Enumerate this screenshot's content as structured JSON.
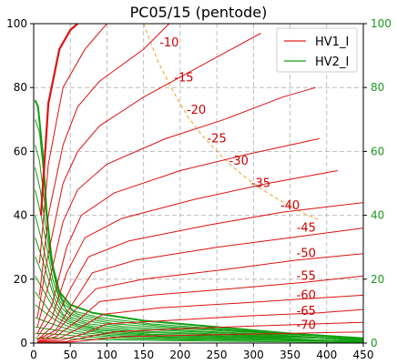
{
  "chart_data": {
    "type": "line",
    "title": "PC05/15 (pentode)",
    "xlabel": "",
    "ylabel": "",
    "xlim": [
      0,
      450
    ],
    "ylim": [
      0,
      100
    ],
    "y2lim": [
      0,
      100
    ],
    "x_ticks": [
      0,
      50,
      100,
      150,
      200,
      250,
      300,
      350,
      400,
      450
    ],
    "y_ticks": [
      0,
      20,
      40,
      60,
      80,
      100
    ],
    "grid": true,
    "legend": "top-right",
    "legend_entries": [
      {
        "name": "HV1_I",
        "color": "#e02020"
      },
      {
        "name": "HV2_I",
        "color": "#1a9a1a"
      }
    ],
    "colors": {
      "hv1": "#dd1111",
      "hv2": "#11a011",
      "dissipation": "#f0a020",
      "right_axis": "#1a9a1a"
    },
    "hv1_curves": [
      {
        "label": "-10",
        "values": [
          [
            10,
            40
          ],
          [
            20,
            75
          ],
          [
            35,
            92
          ],
          [
            50,
            98
          ],
          [
            60,
            100
          ]
        ]
      },
      {
        "label": "-15",
        "values": [
          [
            8,
            25
          ],
          [
            20,
            56
          ],
          [
            40,
            80
          ],
          [
            70,
            92
          ],
          [
            100,
            100
          ]
        ]
      },
      {
        "label": "-20",
        "values": [
          [
            8,
            15
          ],
          [
            20,
            40
          ],
          [
            40,
            62
          ],
          [
            60,
            74
          ],
          [
            90,
            82
          ],
          [
            150,
            92
          ],
          [
            185,
            100
          ]
        ]
      },
      {
        "label": "-25",
        "values": [
          [
            5,
            8
          ],
          [
            20,
            28
          ],
          [
            40,
            50
          ],
          [
            60,
            60
          ],
          [
            90,
            68
          ],
          [
            150,
            77
          ],
          [
            230,
            87
          ],
          [
            310,
            97
          ]
        ]
      },
      {
        "label": "-30",
        "values": [
          [
            5,
            5
          ],
          [
            20,
            18
          ],
          [
            40,
            38
          ],
          [
            60,
            48
          ],
          [
            100,
            56
          ],
          [
            180,
            64
          ],
          [
            260,
            70
          ],
          [
            340,
            77
          ],
          [
            385,
            80
          ]
        ]
      },
      {
        "label": "-35",
        "values": [
          [
            5,
            3
          ],
          [
            25,
            12
          ],
          [
            45,
            30
          ],
          [
            65,
            40
          ],
          [
            110,
            47
          ],
          [
            200,
            54
          ],
          [
            290,
            59
          ],
          [
            390,
            64
          ]
        ]
      },
      {
        "label": "-40",
        "values": [
          [
            5,
            2
          ],
          [
            25,
            8
          ],
          [
            45,
            22
          ],
          [
            70,
            33
          ],
          [
            120,
            39
          ],
          [
            220,
            45
          ],
          [
            320,
            50
          ],
          [
            415,
            54
          ]
        ]
      },
      {
        "label": "-45",
        "values": [
          [
            5,
            1
          ],
          [
            25,
            5
          ],
          [
            50,
            17
          ],
          [
            75,
            27
          ],
          [
            130,
            32
          ],
          [
            240,
            37
          ],
          [
            340,
            41
          ],
          [
            450,
            44
          ]
        ]
      },
      {
        "label": "-50",
        "values": [
          [
            5,
            1
          ],
          [
            30,
            4
          ],
          [
            55,
            13
          ],
          [
            80,
            22
          ],
          [
            140,
            26
          ],
          [
            250,
            30
          ],
          [
            350,
            33
          ],
          [
            450,
            36
          ]
        ]
      },
      {
        "label": "-55",
        "values": [
          [
            5,
            0.5
          ],
          [
            30,
            3
          ],
          [
            55,
            10
          ],
          [
            85,
            17
          ],
          [
            150,
            20
          ],
          [
            260,
            23
          ],
          [
            360,
            26
          ],
          [
            450,
            28
          ]
        ]
      },
      {
        "label": "-60",
        "values": [
          [
            5,
            0.3
          ],
          [
            30,
            2
          ],
          [
            60,
            7
          ],
          [
            90,
            13
          ],
          [
            160,
            15
          ],
          [
            270,
            17
          ],
          [
            370,
            19
          ],
          [
            450,
            21
          ]
        ]
      },
      {
        "label": "-65",
        "values": [
          [
            5,
            0.2
          ],
          [
            35,
            1.5
          ],
          [
            65,
            5
          ],
          [
            95,
            9
          ],
          [
            170,
            11
          ],
          [
            280,
            12.5
          ],
          [
            380,
            14
          ],
          [
            450,
            15
          ]
        ]
      },
      {
        "label": "-70",
        "values": [
          [
            5,
            0.1
          ],
          [
            40,
            1
          ],
          [
            70,
            3
          ],
          [
            100,
            6
          ],
          [
            180,
            7
          ],
          [
            290,
            8.5
          ],
          [
            390,
            9.5
          ],
          [
            450,
            10.5
          ]
        ]
      },
      {
        "label": "",
        "values": [
          [
            5,
            0.1
          ],
          [
            45,
            0.5
          ],
          [
            75,
            2
          ],
          [
            110,
            3.5
          ],
          [
            200,
            4.5
          ],
          [
            320,
            5.5
          ],
          [
            450,
            6.5
          ]
        ]
      },
      {
        "label": "",
        "values": [
          [
            5,
            0
          ],
          [
            50,
            0.3
          ],
          [
            80,
            1
          ],
          [
            120,
            2
          ],
          [
            220,
            2.5
          ],
          [
            340,
            3
          ],
          [
            450,
            3.5
          ]
        ]
      }
    ],
    "hv2_curves": [
      {
        "values": [
          [
            2,
            76
          ],
          [
            6,
            74
          ],
          [
            12,
            60
          ],
          [
            18,
            40
          ],
          [
            25,
            25
          ],
          [
            35,
            16
          ],
          [
            50,
            12
          ],
          [
            80,
            9.5
          ],
          [
            150,
            7
          ],
          [
            250,
            5
          ],
          [
            350,
            3
          ],
          [
            450,
            1.5
          ]
        ]
      },
      {
        "values": [
          [
            2,
            70
          ],
          [
            8,
            66
          ],
          [
            14,
            52
          ],
          [
            20,
            35
          ],
          [
            28,
            22
          ],
          [
            38,
            14
          ],
          [
            55,
            10
          ],
          [
            90,
            8
          ],
          [
            160,
            6
          ],
          [
            260,
            4.3
          ],
          [
            360,
            2.7
          ],
          [
            450,
            1.2
          ]
        ]
      },
      {
        "values": [
          [
            2,
            62
          ],
          [
            8,
            57
          ],
          [
            15,
            44
          ],
          [
            22,
            30
          ],
          [
            30,
            19
          ],
          [
            42,
            12
          ],
          [
            60,
            9
          ],
          [
            100,
            7
          ],
          [
            180,
            5.2
          ],
          [
            280,
            3.8
          ],
          [
            380,
            2.3
          ],
          [
            450,
            1
          ]
        ]
      },
      {
        "values": [
          [
            2,
            55
          ],
          [
            9,
            48
          ],
          [
            16,
            37
          ],
          [
            24,
            25
          ],
          [
            33,
            16
          ],
          [
            45,
            10
          ],
          [
            65,
            8
          ],
          [
            110,
            6
          ],
          [
            200,
            4.5
          ],
          [
            300,
            3.3
          ],
          [
            400,
            2
          ],
          [
            450,
            1
          ]
        ]
      },
      {
        "values": [
          [
            2,
            48
          ],
          [
            10,
            40
          ],
          [
            18,
            30
          ],
          [
            26,
            20
          ],
          [
            36,
            13
          ],
          [
            50,
            9
          ],
          [
            70,
            7
          ],
          [
            120,
            5.2
          ],
          [
            220,
            3.8
          ],
          [
            320,
            2.8
          ],
          [
            450,
            0.8
          ]
        ]
      },
      {
        "values": [
          [
            2,
            40
          ],
          [
            10,
            33
          ],
          [
            18,
            25
          ],
          [
            28,
            16
          ],
          [
            38,
            11
          ],
          [
            52,
            8
          ],
          [
            75,
            6
          ],
          [
            130,
            4.5
          ],
          [
            240,
            3.3
          ],
          [
            340,
            2.4
          ],
          [
            450,
            0.7
          ]
        ]
      },
      {
        "values": [
          [
            2,
            33
          ],
          [
            11,
            27
          ],
          [
            20,
            20
          ],
          [
            30,
            13
          ],
          [
            40,
            9
          ],
          [
            55,
            7
          ],
          [
            80,
            5.2
          ],
          [
            140,
            3.8
          ],
          [
            260,
            2.8
          ],
          [
            360,
            2
          ],
          [
            450,
            0.6
          ]
        ]
      },
      {
        "values": [
          [
            2,
            27
          ],
          [
            11,
            22
          ],
          [
            20,
            16
          ],
          [
            31,
            11
          ],
          [
            42,
            8
          ],
          [
            58,
            6
          ],
          [
            85,
            4.5
          ],
          [
            150,
            3.3
          ],
          [
            280,
            2.4
          ],
          [
            380,
            1.7
          ],
          [
            450,
            0.5
          ]
        ]
      },
      {
        "values": [
          [
            2,
            21
          ],
          [
            12,
            17
          ],
          [
            22,
            13
          ],
          [
            33,
            9
          ],
          [
            45,
            7
          ],
          [
            62,
            5.3
          ],
          [
            90,
            4
          ],
          [
            160,
            2.8
          ],
          [
            300,
            2
          ],
          [
            400,
            1.5
          ],
          [
            450,
            0.4
          ]
        ]
      },
      {
        "values": [
          [
            2,
            16
          ],
          [
            12,
            13
          ],
          [
            22,
            10
          ],
          [
            35,
            7.5
          ],
          [
            48,
            6
          ],
          [
            65,
            4.6
          ],
          [
            95,
            3.4
          ],
          [
            170,
            2.4
          ],
          [
            320,
            1.7
          ],
          [
            450,
            0.4
          ]
        ]
      },
      {
        "values": [
          [
            2,
            12
          ],
          [
            13,
            10
          ],
          [
            24,
            8
          ],
          [
            37,
            6.2
          ],
          [
            50,
            5
          ],
          [
            68,
            3.9
          ],
          [
            100,
            2.9
          ],
          [
            180,
            2
          ],
          [
            340,
            1.4
          ],
          [
            450,
            0.3
          ]
        ]
      },
      {
        "values": [
          [
            2,
            8
          ],
          [
            13,
            7
          ],
          [
            25,
            6
          ],
          [
            38,
            5
          ],
          [
            52,
            4
          ],
          [
            70,
            3.2
          ],
          [
            105,
            2.4
          ],
          [
            190,
            1.7
          ],
          [
            360,
            1.1
          ],
          [
            450,
            0.3
          ]
        ]
      },
      {
        "values": [
          [
            2,
            5
          ],
          [
            14,
            4.6
          ],
          [
            26,
            4.2
          ],
          [
            40,
            3.8
          ],
          [
            55,
            3.1
          ],
          [
            75,
            2.5
          ],
          [
            110,
            1.9
          ],
          [
            200,
            1.3
          ],
          [
            380,
            0.8
          ],
          [
            450,
            0.2
          ]
        ]
      },
      {
        "values": [
          [
            2,
            3
          ],
          [
            14,
            3
          ],
          [
            28,
            2.8
          ],
          [
            42,
            2.6
          ],
          [
            58,
            2.2
          ],
          [
            80,
            1.8
          ],
          [
            120,
            1.4
          ],
          [
            220,
            1
          ],
          [
            400,
            0.6
          ],
          [
            450,
            0.2
          ]
        ]
      },
      {
        "values": [
          [
            2,
            1.5
          ],
          [
            15,
            1.6
          ],
          [
            30,
            1.6
          ],
          [
            45,
            1.5
          ],
          [
            60,
            1.3
          ],
          [
            85,
            1.1
          ],
          [
            130,
            0.9
          ],
          [
            240,
            0.6
          ],
          [
            450,
            0.1
          ]
        ]
      }
    ],
    "dissipation_curve": {
      "values": [
        [
          150,
          100
        ],
        [
          170,
          88
        ],
        [
          190,
          79
        ],
        [
          210,
          71
        ],
        [
          230,
          65
        ],
        [
          250,
          60
        ],
        [
          270,
          55.5
        ],
        [
          290,
          51.7
        ],
        [
          310,
          48.4
        ],
        [
          330,
          45.5
        ],
        [
          350,
          42.9
        ],
        [
          370,
          40.5
        ],
        [
          390,
          38.5
        ]
      ]
    },
    "curve_label_positions": [
      {
        "label": "-10",
        "x": 185,
        "y": 94
      },
      {
        "label": "-15",
        "x": 205,
        "y": 83
      },
      {
        "label": "-20",
        "x": 222,
        "y": 73
      },
      {
        "label": "-25",
        "x": 250,
        "y": 64
      },
      {
        "label": "-30",
        "x": 280,
        "y": 57
      },
      {
        "label": "-35",
        "x": 310,
        "y": 50
      },
      {
        "label": "-40",
        "x": 350,
        "y": 43
      },
      {
        "label": "-45",
        "x": 372,
        "y": 36
      },
      {
        "label": "-50",
        "x": 372,
        "y": 28
      },
      {
        "label": "-55",
        "x": 372,
        "y": 21
      },
      {
        "label": "-60",
        "x": 372,
        "y": 15
      },
      {
        "label": "-65",
        "x": 372,
        "y": 10
      },
      {
        "label": "-70",
        "x": 372,
        "y": 5.5
      }
    ]
  }
}
